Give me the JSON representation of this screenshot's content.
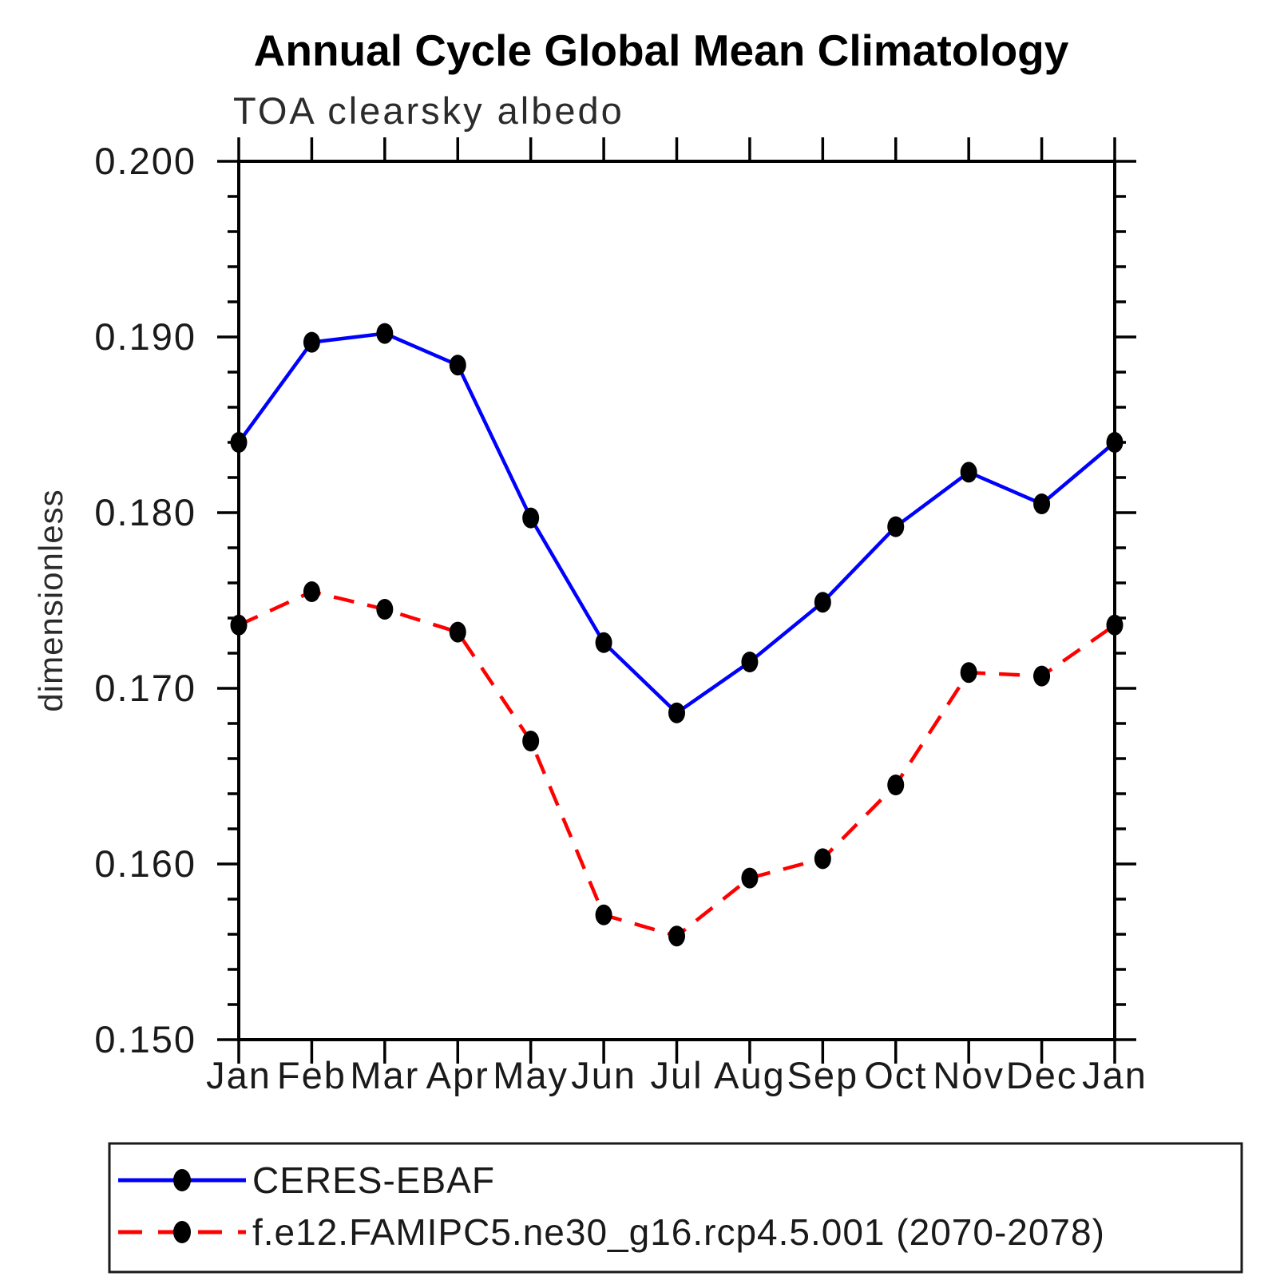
{
  "page": {
    "background": "#ffffff"
  },
  "chart": {
    "title": "Annual Cycle Global Mean Climatology",
    "subtitle": "TOA clearsky albedo",
    "ylabel": "dimensionless"
  },
  "chart_data": {
    "type": "line",
    "title": "Annual Cycle Global Mean Climatology",
    "subtitle": "TOA clearsky albedo",
    "xlabel": "",
    "ylabel": "dimensionless",
    "categories": [
      "Jan",
      "Feb",
      "Mar",
      "Apr",
      "May",
      "Jun",
      "Jul",
      "Aug",
      "Sep",
      "Oct",
      "Nov",
      "Dec",
      "Jan"
    ],
    "series": [
      {
        "name": "CERES-EBAF",
        "color": "#0000ff",
        "line_style": "solid",
        "marker": "filled-circle",
        "marker_color": "#000000",
        "values": [
          0.184,
          0.1897,
          0.1902,
          0.1884,
          0.1797,
          0.1726,
          0.1686,
          0.1715,
          0.1749,
          0.1792,
          0.1823,
          0.1805,
          0.184
        ]
      },
      {
        "name": "f.e12.FAMIPC5.ne30_g16.rcp4.5.001 (2070-2078)",
        "color": "#ff0000",
        "line_style": "dashed",
        "marker": "filled-circle",
        "marker_color": "#000000",
        "values": [
          0.1736,
          0.1755,
          0.1745,
          0.1732,
          0.167,
          0.1571,
          0.1559,
          0.1592,
          0.1603,
          0.1645,
          0.1709,
          0.1707,
          0.1736
        ]
      }
    ],
    "ylim": [
      0.15,
      0.2
    ],
    "ytick_major_step": 0.01,
    "ytick_minor_step": 0.002,
    "ytick_labels": [
      "0.150",
      "0.160",
      "0.170",
      "0.180",
      "0.190",
      "0.200"
    ],
    "grid": false,
    "legend_position": "bottom-box"
  },
  "legend": {
    "entries": [
      {
        "label": "CERES-EBAF"
      },
      {
        "label": "f.e12.FAMIPC5.ne30_g16.rcp4.5.001 (2070-2078)"
      }
    ]
  }
}
